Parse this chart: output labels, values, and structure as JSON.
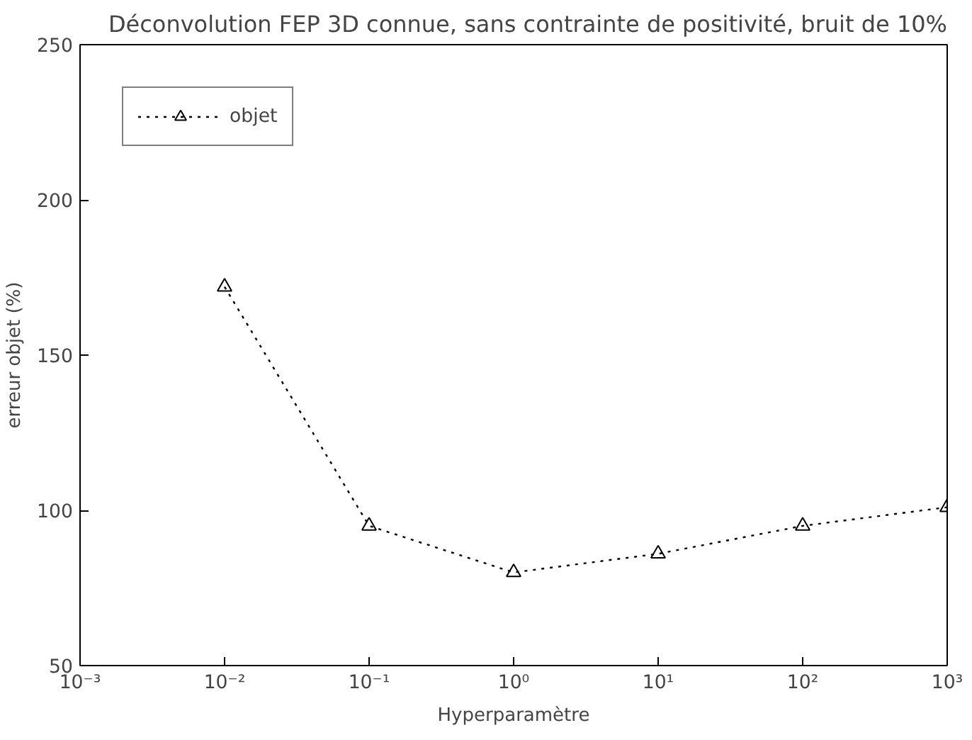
{
  "chart_data": {
    "type": "line",
    "title": "Déconvolution FEP 3D connue, sans contrainte de positivité, bruit de 10%",
    "xlabel": "Hyperparamètre",
    "ylabel": "erreur objet (%)",
    "log": "x",
    "x": [
      0.01,
      0.1,
      1,
      10,
      100,
      1000
    ],
    "series": [
      {
        "name": "objet",
        "color": "#000000",
        "values": [
          172,
          95,
          80,
          86,
          95,
          101
        ]
      }
    ],
    "xlim": [
      0.001,
      1000
    ],
    "ylim": [
      50,
      250
    ],
    "xticks": [
      {
        "value": 0.001,
        "label": "10⁻³"
      },
      {
        "value": 0.01,
        "label": "10⁻²"
      },
      {
        "value": 0.1,
        "label": "10⁻¹"
      },
      {
        "value": 1,
        "label": "10⁰"
      },
      {
        "value": 10,
        "label": "10¹"
      },
      {
        "value": 100,
        "label": "10²"
      },
      {
        "value": 1000,
        "label": "10³"
      }
    ],
    "yticks": [
      50,
      100,
      150,
      200,
      250
    ],
    "grid": false,
    "legend": "top left",
    "marker": "triangle",
    "line_style": "dotted"
  }
}
